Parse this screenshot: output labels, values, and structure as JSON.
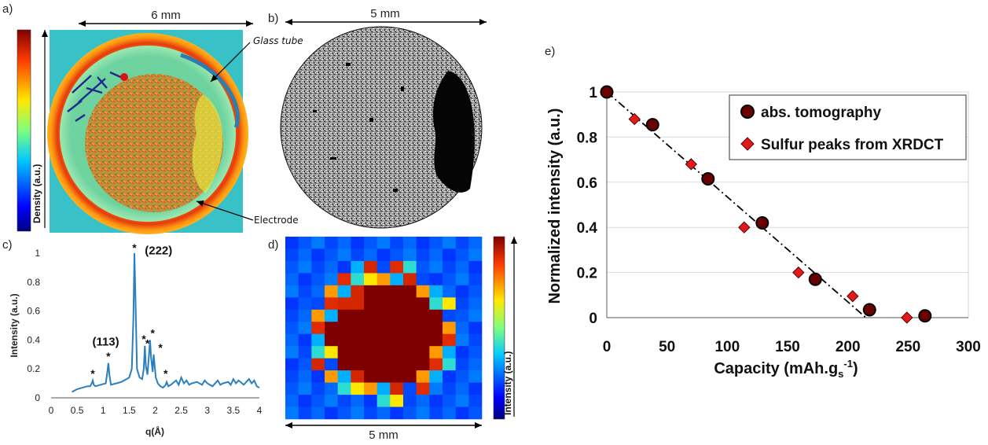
{
  "panels": {
    "a": {
      "label": "a)",
      "scale_label": "6 mm",
      "colorbar_label": "Density (a.u.)",
      "annotations": [
        "Glass tube",
        "Electrode"
      ]
    },
    "b": {
      "label": "b)",
      "scale_label": "5 mm"
    },
    "c": {
      "label": "c)",
      "xlabel": "q(Å)",
      "ylabel": "Intensity (a.u.)",
      "peak_labels": [
        "(222)",
        "(113)"
      ],
      "marker_symbol": "*"
    },
    "d": {
      "label": "d)",
      "scale_label": "5 mm",
      "colorbar_label": "Intensity (a.u.)"
    },
    "e": {
      "label": "e)"
    }
  },
  "colors": {
    "density_low": "#1a237e",
    "density_high": "#b71c1c",
    "xrd_line": "#2a7fc0",
    "abs_marker_fill": "#6b0000",
    "abs_marker_edge": "#000000",
    "xrdct_marker_fill": "#e31a1c",
    "xrdct_marker_edge": "#5a0000",
    "fit_line": "#000000"
  },
  "chart_data": [
    {
      "type": "line",
      "panel": "c",
      "xlabel": "q(Å)",
      "ylabel": "Intensity (a.u.)",
      "xlim": [
        0,
        4
      ],
      "ylim": [
        0,
        1
      ],
      "xticks": [
        0,
        0.5,
        1,
        1.5,
        2,
        2.5,
        3,
        3.5,
        4
      ],
      "yticks": [
        0,
        0.2,
        0.4,
        0.6,
        0.8,
        1
      ],
      "series": [
        {
          "x": [
            0.4,
            0.45,
            0.5,
            0.6,
            0.7,
            0.75,
            0.78,
            0.8,
            0.82,
            0.85,
            0.95,
            1.05,
            1.08,
            1.1,
            1.12,
            1.15,
            1.25,
            1.35,
            1.45,
            1.5,
            1.55,
            1.58,
            1.6,
            1.62,
            1.65,
            1.7,
            1.75,
            1.78,
            1.8,
            1.82,
            1.85,
            1.88,
            1.9,
            1.92,
            1.95,
            1.97,
            1.99,
            2.01,
            2.05,
            2.1,
            2.15,
            2.2,
            2.22,
            2.25,
            2.3,
            2.4,
            2.45,
            2.5,
            2.55,
            2.6,
            2.65,
            2.7,
            2.8,
            2.9,
            2.95,
            3.0,
            3.1,
            3.2,
            3.25,
            3.3,
            3.4,
            3.45,
            3.5,
            3.55,
            3.6,
            3.7,
            3.8,
            3.85,
            3.9,
            3.95,
            4.0
          ],
          "y": [
            0.04,
            0.05,
            0.06,
            0.07,
            0.08,
            0.08,
            0.1,
            0.12,
            0.09,
            0.08,
            0.09,
            0.1,
            0.18,
            0.24,
            0.16,
            0.09,
            0.1,
            0.11,
            0.13,
            0.14,
            0.2,
            0.55,
            1.0,
            0.7,
            0.2,
            0.14,
            0.13,
            0.2,
            0.36,
            0.22,
            0.16,
            0.3,
            0.4,
            0.28,
            0.18,
            0.3,
            0.22,
            0.14,
            0.1,
            0.08,
            0.07,
            0.09,
            0.11,
            0.08,
            0.09,
            0.12,
            0.09,
            0.14,
            0.1,
            0.12,
            0.09,
            0.1,
            0.11,
            0.09,
            0.12,
            0.1,
            0.08,
            0.12,
            0.09,
            0.1,
            0.11,
            0.09,
            0.13,
            0.1,
            0.12,
            0.09,
            0.13,
            0.1,
            0.12,
            0.08,
            0.07
          ]
        }
      ],
      "annotations": [
        {
          "text": "*",
          "x": 0.8,
          "y": 0.13
        },
        {
          "text": "*",
          "x": 1.1,
          "y": 0.25
        },
        {
          "text": "*",
          "x": 1.6,
          "y": 1.0
        },
        {
          "text": "*",
          "x": 1.78,
          "y": 0.37
        },
        {
          "text": "*",
          "x": 1.85,
          "y": 0.34
        },
        {
          "text": "*",
          "x": 1.95,
          "y": 0.41
        },
        {
          "text": "*",
          "x": 2.1,
          "y": 0.31
        },
        {
          "text": "*",
          "x": 2.2,
          "y": 0.13
        },
        {
          "text": "(222)",
          "x": 1.8,
          "y": 0.96
        },
        {
          "text": "(113)",
          "x": 1.05,
          "y": 0.33
        }
      ]
    },
    {
      "type": "scatter",
      "panel": "e",
      "xlabel": "Capacity (mAh.g",
      "xlabel_sub": "s",
      "xlabel_sup": "-1",
      "xlabel_end": ")",
      "ylabel": "Normalized intensity (a.u.)",
      "xlim": [
        0,
        300
      ],
      "ylim": [
        0,
        1
      ],
      "xticks": [
        0,
        50,
        100,
        150,
        200,
        250,
        300
      ],
      "yticks": [
        0,
        0.2,
        0.4,
        0.6,
        0.8,
        1
      ],
      "legend": "top-right",
      "series": [
        {
          "name": "abs. tomography",
          "marker": "circle",
          "x": [
            0,
            38,
            84,
            129,
            173,
            218,
            264
          ],
          "y": [
            1.0,
            0.855,
            0.615,
            0.42,
            0.17,
            0.035,
            0.008
          ]
        },
        {
          "name": "Sulfur peaks from XRDCT",
          "marker": "diamond",
          "x": [
            23,
            70,
            114,
            159,
            204,
            249
          ],
          "y": [
            0.88,
            0.68,
            0.4,
            0.2,
            0.095,
            0.0
          ]
        }
      ],
      "trendline": {
        "x": [
          0,
          215
        ],
        "y": [
          1.0,
          0.0
        ],
        "style": "dash-dot"
      }
    }
  ]
}
